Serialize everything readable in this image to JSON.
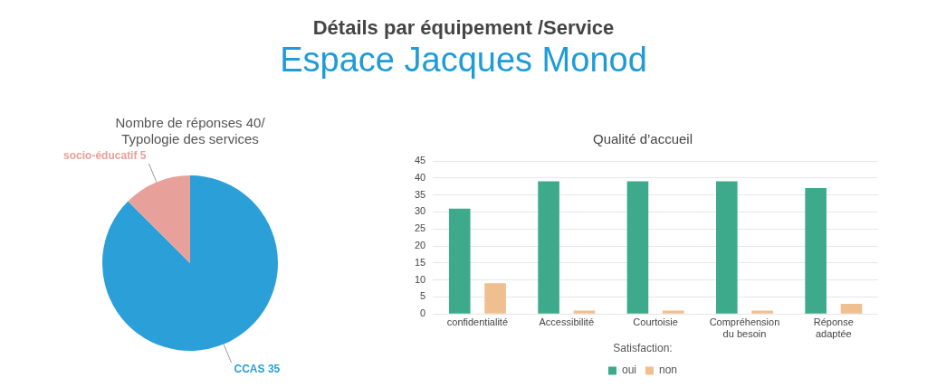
{
  "chart_data": [
    {
      "type": "other",
      "title": "Détails par équipement /Service",
      "subtitle": "Espace Jacques Monod"
    },
    {
      "type": "pie",
      "title": "Nombre de réponses 40/ Typologie des services",
      "categories": [
        "CCAS",
        "socio-éducatif"
      ],
      "values": [
        35,
        5
      ],
      "colors": [
        "#2a9fd8",
        "#e8a09a"
      ],
      "data_labels": true,
      "legend": false
    },
    {
      "type": "bar",
      "title": "Qualité d’accueil",
      "categories": [
        "confidentialité",
        "Accessibilité",
        "Courtoisie",
        "Compréhension du besoin",
        "Réponse adaptée"
      ],
      "series": [
        {
          "name": "oui",
          "color": "#3daa8c",
          "values": [
            31,
            39,
            39,
            39,
            37
          ]
        },
        {
          "name": "non",
          "color": "#f0bf8f",
          "values": [
            9,
            1,
            1,
            1,
            3
          ]
        }
      ],
      "ylim": [
        0,
        45
      ],
      "yticks": [
        0,
        5,
        10,
        15,
        20,
        25,
        30,
        35,
        40,
        45
      ],
      "grid": "y",
      "legend": "bottom",
      "legend_title": "Satisfaction:"
    }
  ]
}
